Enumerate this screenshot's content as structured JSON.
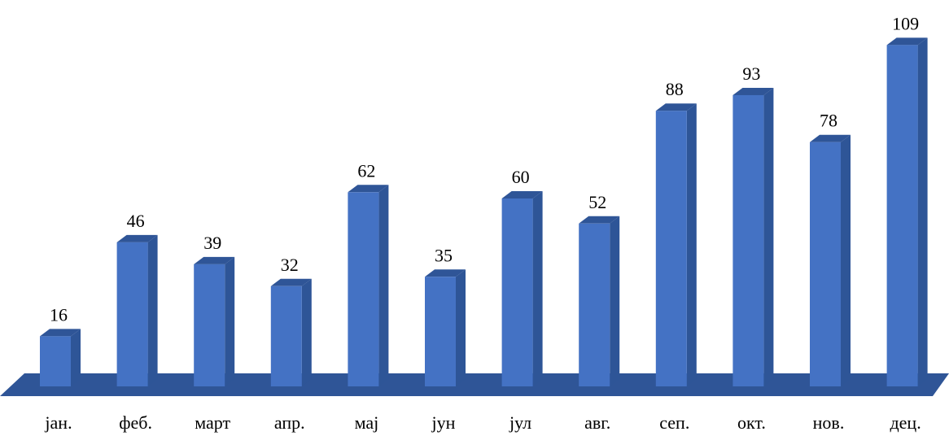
{
  "chart_data": {
    "type": "bar",
    "style": "3d-column",
    "categories": [
      "јан.",
      "феб.",
      "март",
      "апр.",
      "мај",
      "јун",
      "јул",
      "авг.",
      "сеп.",
      "окт.",
      "нов.",
      "дец."
    ],
    "values": [
      16,
      46,
      39,
      32,
      62,
      35,
      60,
      52,
      88,
      93,
      78,
      109
    ],
    "title": "",
    "xlabel": "",
    "ylabel": "",
    "ylim": [
      0,
      110
    ],
    "grid": false,
    "legend": "none",
    "data_labels": true,
    "colors": {
      "bar_front": "#4472C4",
      "bar_side": "#2E5597",
      "bar_top": "#2F5597",
      "floor": "#2F5597"
    }
  }
}
